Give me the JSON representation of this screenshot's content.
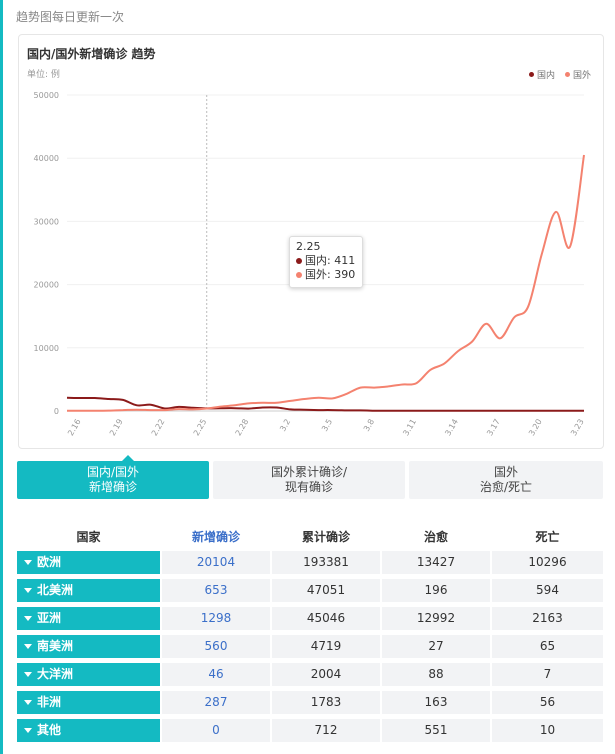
{
  "header": {
    "update_note": "趋势图每日更新一次"
  },
  "chart_card": {
    "title": "国内/国外新增确诊 趋势",
    "unit": "单位: 例",
    "legend": [
      {
        "name": "国内",
        "color": "#8b1a1a"
      },
      {
        "name": "国外",
        "color": "#f4826f"
      }
    ],
    "tooltip": {
      "date": "2.25",
      "rows": [
        {
          "label": "国内: 411",
          "color": "#8b1a1a"
        },
        {
          "label": "国外: 390",
          "color": "#f4826f"
        }
      ]
    }
  },
  "chart_data": {
    "type": "line",
    "title": "国内/国外新增确诊 趋势",
    "ylabel": "单位: 例",
    "ylim": [
      0,
      50000
    ],
    "yticks": [
      "0",
      "10000",
      "20000",
      "30000",
      "40000",
      "50000"
    ],
    "xtick_labels": [
      "2.16",
      "2.19",
      "2.22",
      "2.25",
      "2.28",
      "3.2",
      "3.5",
      "3.8",
      "3.11",
      "3.14",
      "3.17",
      "3.20",
      "3.23"
    ],
    "grid": true,
    "legend_position": "top-right",
    "x": [
      "2.15",
      "2.16",
      "2.17",
      "2.18",
      "2.19",
      "2.20",
      "2.21",
      "2.22",
      "2.23",
      "2.24",
      "2.25",
      "2.26",
      "2.27",
      "2.28",
      "2.29",
      "3.1",
      "3.2",
      "3.3",
      "3.4",
      "3.5",
      "3.6",
      "3.7",
      "3.8",
      "3.9",
      "3.10",
      "3.11",
      "3.12",
      "3.13",
      "3.14",
      "3.15",
      "3.16",
      "3.17",
      "3.18",
      "3.19",
      "3.20",
      "3.21",
      "3.22",
      "3.23"
    ],
    "series": [
      {
        "name": "国内",
        "color": "#8b1a1a",
        "values": [
          2100,
          2050,
          2050,
          1900,
          1750,
          900,
          1000,
          400,
          650,
          500,
          411,
          430,
          450,
          380,
          550,
          550,
          250,
          200,
          150,
          150,
          100,
          100,
          50,
          50,
          50,
          50,
          50,
          50,
          50,
          50,
          50,
          50,
          50,
          50,
          50,
          50,
          50,
          50
        ]
      },
      {
        "name": "国外",
        "color": "#f4826f",
        "values": [
          50,
          30,
          40,
          60,
          150,
          200,
          150,
          150,
          300,
          250,
          390,
          700,
          900,
          1200,
          1300,
          1300,
          1600,
          1900,
          2100,
          2000,
          2700,
          3700,
          3700,
          3900,
          4200,
          4400,
          6500,
          7500,
          9500,
          11000,
          13800,
          11500,
          14800,
          16500,
          25000,
          31500,
          26000,
          40500
        ]
      }
    ]
  },
  "tabs": [
    {
      "line1": "国内/国外",
      "line2": "新增确诊"
    },
    {
      "line1": "国外累计确诊/",
      "line2": "现有确诊"
    },
    {
      "line1": "国外",
      "line2": "治愈/死亡"
    }
  ],
  "table": {
    "headers": [
      "国家",
      "新增确诊",
      "累计确诊",
      "治愈",
      "死亡"
    ],
    "rows": [
      {
        "region": "欧洲",
        "new": "20104",
        "total": "193381",
        "cured": "13427",
        "dead": "10296"
      },
      {
        "region": "北美洲",
        "new": "653",
        "total": "47051",
        "cured": "196",
        "dead": "594"
      },
      {
        "region": "亚洲",
        "new": "1298",
        "total": "45046",
        "cured": "12992",
        "dead": "2163"
      },
      {
        "region": "南美洲",
        "new": "560",
        "total": "4719",
        "cured": "27",
        "dead": "65"
      },
      {
        "region": "大洋洲",
        "new": "46",
        "total": "2004",
        "cured": "88",
        "dead": "7"
      },
      {
        "region": "非洲",
        "new": "287",
        "total": "1783",
        "cured": "163",
        "dead": "56"
      },
      {
        "region": "其他",
        "new": "0",
        "total": "712",
        "cured": "551",
        "dead": "10"
      }
    ]
  },
  "colors": {
    "accent": "#14bac2",
    "link_blue": "#3b6fc9"
  }
}
